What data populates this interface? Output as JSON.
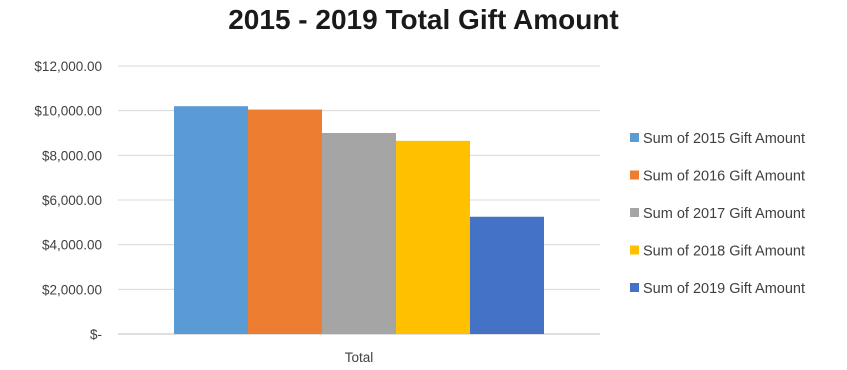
{
  "chart_data": {
    "type": "bar",
    "title": "2015 - 2019 Total Gift Amount",
    "categories": [
      "Total"
    ],
    "series": [
      {
        "name": "Sum of 2015 Gift Amount",
        "values": [
          10200
        ],
        "color": "#5B9BD5"
      },
      {
        "name": "Sum of 2016 Gift Amount",
        "values": [
          10050
        ],
        "color": "#ED7D31"
      },
      {
        "name": "Sum of 2017 Gift Amount",
        "values": [
          9000
        ],
        "color": "#A5A5A5"
      },
      {
        "name": "Sum of 2018 Gift Amount",
        "values": [
          8650
        ],
        "color": "#FFC000"
      },
      {
        "name": "Sum of 2019 Gift Amount",
        "values": [
          5250
        ],
        "color": "#4472C4"
      }
    ],
    "yticks": [
      0,
      2000,
      4000,
      6000,
      8000,
      10000,
      12000
    ],
    "ytick_labels": [
      "$-",
      "$2,000.00",
      "$4,000.00",
      "$6,000.00",
      "$8,000.00",
      "$10,000.00",
      "$12,000.00"
    ],
    "ylim": [
      0,
      12000
    ],
    "grid": true,
    "legend_position": "right"
  }
}
